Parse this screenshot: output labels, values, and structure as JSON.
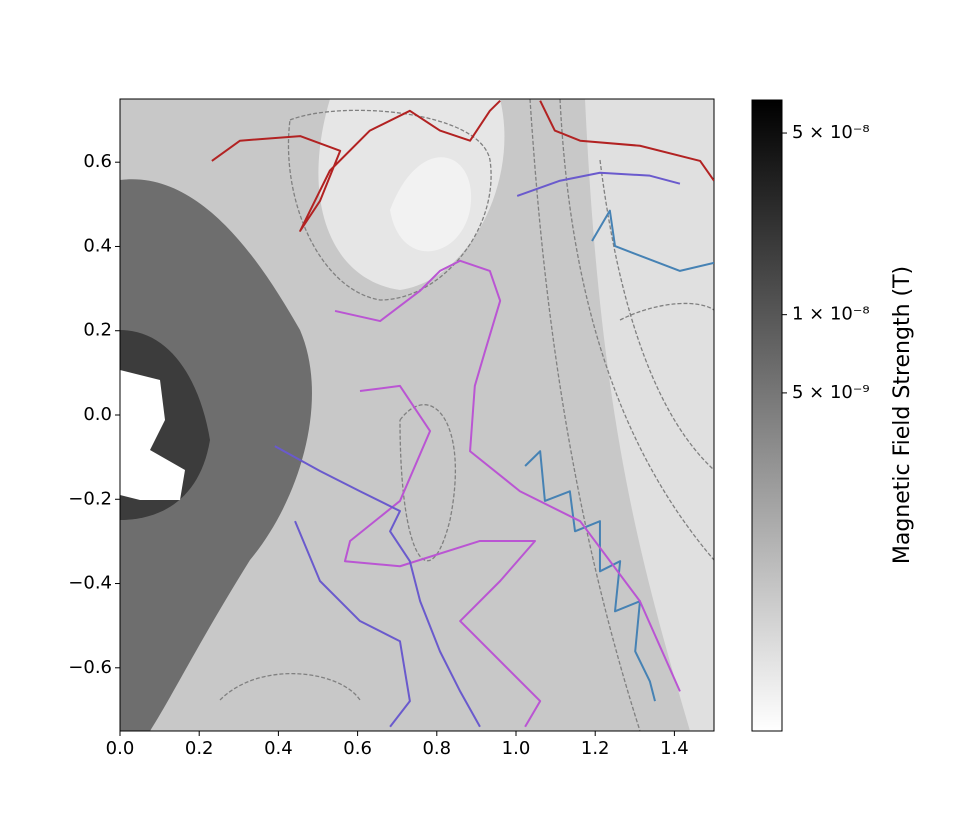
{
  "chart_data": {
    "type": "trajectories",
    "xlim": [
      0,
      1.5
    ],
    "ylim": [
      -0.75,
      0.75
    ],
    "xticks": [
      {
        "value": 0,
        "label": "0.0"
      },
      0.2,
      0.4,
      0.6,
      0.8,
      {
        "value": 1,
        "label": "1.0"
      },
      1.2,
      1.4
    ],
    "yticks": [
      {
        "value": -0.6,
        "label": "−0.6"
      },
      {
        "value": -0.4,
        "label": "−0.4"
      },
      {
        "value": -0.2,
        "label": "−0.2"
      },
      {
        "value": 0,
        "label": "0.0"
      },
      0.2,
      0.4,
      0.6
    ],
    "colorbar": {
      "label": "Magnetic Field Strength (T)",
      "log": true,
      "lim": [
        2.5e-10,
        6.7e-08
      ],
      "cmap": [
        "#ffffff",
        "#000000"
      ],
      "ticks": [
        {
          "value": 5e-09,
          "label": "5 × 10⁻⁹"
        },
        {
          "value": 1e-08,
          "label": "1 × 10⁻⁸"
        },
        {
          "value": 5e-08,
          "label": "5 × 10⁻⁸"
        }
      ]
    },
    "series": [
      {
        "color": "#b22222",
        "x": [
          0.232,
          0.303,
          0.455,
          0.556,
          0.505,
          0.455,
          0.48,
          0.53,
          0.631,
          0.732,
          0.808,
          0.884,
          0.934,
          0.96
        ],
        "y": [
          0.603,
          0.651,
          0.662,
          0.627,
          0.508,
          0.437,
          0.485,
          0.58,
          0.675,
          0.722,
          0.675,
          0.651,
          0.722,
          0.746
        ]
      },
      {
        "color": "#b22222",
        "x": [
          1.061,
          1.098,
          1.162,
          1.313,
          1.465,
          1.5
        ],
        "y": [
          0.746,
          0.675,
          0.651,
          0.639,
          0.603,
          0.556
        ]
      },
      {
        "color": "#6a5acd",
        "x": [
          1.003,
          1.111,
          1.212,
          1.338,
          1.414
        ],
        "y": [
          0.52,
          0.556,
          0.575,
          0.568,
          0.549
        ]
      },
      {
        "color": "#4682b4",
        "x": [
          1.192,
          1.237,
          1.25,
          1.313,
          1.414,
          1.5
        ],
        "y": [
          0.413,
          0.485,
          0.401,
          0.378,
          0.342,
          0.361
        ]
      },
      {
        "color": "#4682b4",
        "x": [
          1.023,
          1.061,
          1.073,
          1.136,
          1.149,
          1.212,
          1.212,
          1.263,
          1.25,
          1.313,
          1.301,
          1.338,
          1.351
        ],
        "y": [
          -0.121,
          -0.086,
          -0.204,
          -0.181,
          -0.276,
          -0.252,
          -0.371,
          -0.347,
          -0.466,
          -0.442,
          -0.561,
          -0.632,
          -0.679
        ]
      },
      {
        "color": "#ba55d3",
        "x": [
          0.543,
          0.657,
          0.758,
          0.808,
          0.859,
          0.934,
          0.96,
          0.922,
          0.896,
          0.884,
          1.01,
          1.162,
          1.313,
          1.414
        ],
        "y": [
          0.247,
          0.223,
          0.295,
          0.342,
          0.366,
          0.342,
          0.271,
          0.152,
          0.069,
          -0.086,
          -0.181,
          -0.252,
          -0.442,
          -0.656
        ]
      },
      {
        "color": "#ba55d3",
        "x": [
          0.606,
          0.707,
          0.783,
          0.707,
          0.581,
          0.568,
          0.707,
          0.909,
          1.048,
          0.96,
          0.859,
          1.061,
          1.023
        ],
        "y": [
          0.057,
          0.069,
          -0.038,
          -0.204,
          -0.299,
          -0.347,
          -0.359,
          -0.299,
          -0.299,
          -0.394,
          -0.489,
          -0.679,
          -0.74
        ]
      },
      {
        "color": "#6a5acd",
        "x": [
          0.391,
          0.505,
          0.606,
          0.707,
          0.682,
          0.732,
          0.758,
          0.808,
          0.859,
          0.909
        ],
        "y": [
          -0.074,
          -0.133,
          -0.181,
          -0.228,
          -0.276,
          -0.347,
          -0.442,
          -0.561,
          -0.656,
          -0.74
        ]
      },
      {
        "color": "#6a5acd",
        "x": [
          0.442,
          0.505,
          0.606,
          0.707,
          0.732,
          0.682
        ],
        "y": [
          -0.252,
          -0.394,
          -0.489,
          -0.537,
          -0.679,
          -0.74
        ]
      }
    ]
  }
}
